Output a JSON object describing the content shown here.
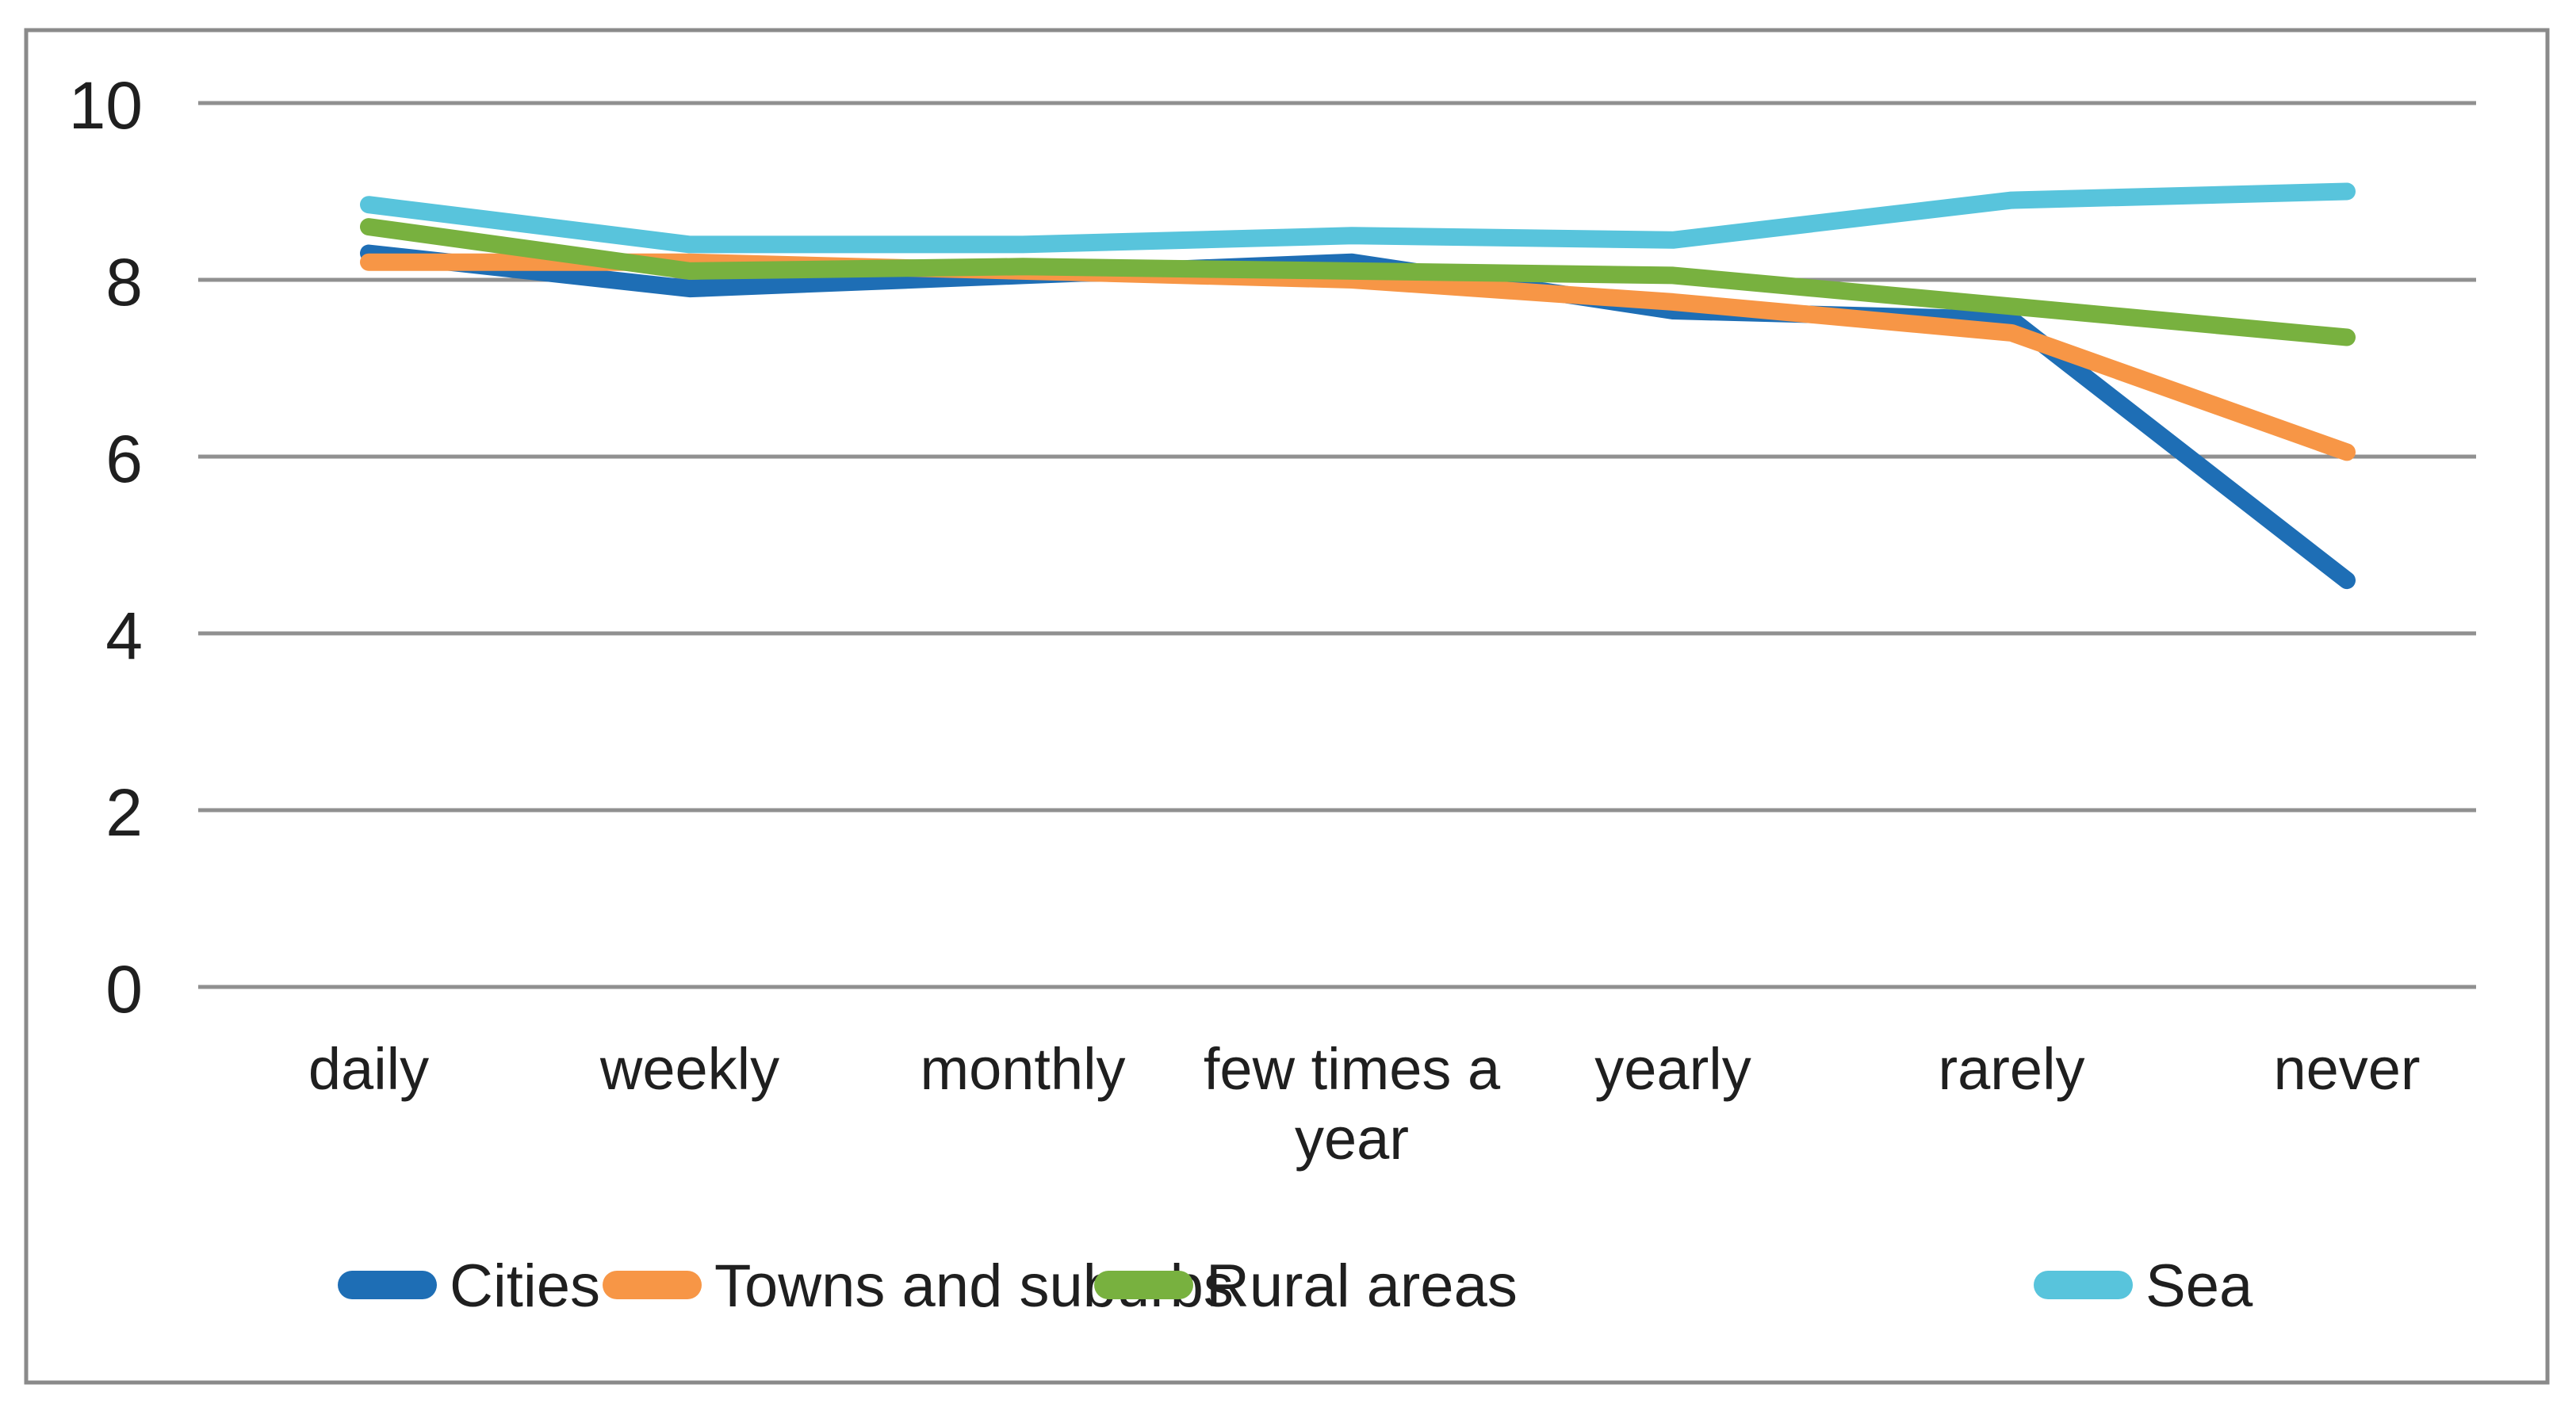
{
  "chart_data": {
    "type": "line",
    "title": "",
    "xlabel": "",
    "ylabel": "",
    "y_axis": {
      "min": 0,
      "max": 10,
      "step": 2,
      "tick_labels": [
        "0",
        "2",
        "4",
        "6",
        "8",
        "10"
      ]
    },
    "categories": [
      {
        "label": "daily",
        "lines": [
          "daily"
        ]
      },
      {
        "label": "weekly",
        "lines": [
          "weekly"
        ]
      },
      {
        "label": "monthly",
        "lines": [
          "monthly"
        ]
      },
      {
        "label": "few times a year",
        "lines": [
          "few times a",
          "year"
        ]
      },
      {
        "label": "yearly",
        "lines": [
          "yearly"
        ]
      },
      {
        "label": "rarely",
        "lines": [
          "rarely"
        ]
      },
      {
        "label": "never",
        "lines": [
          "never"
        ]
      }
    ],
    "series": [
      {
        "name": "Cities",
        "color": "#1E6EB5",
        "values": [
          8.3,
          7.9,
          8.05,
          8.2,
          7.65,
          7.55,
          4.6
        ]
      },
      {
        "name": "Towns and suburbs",
        "color": "#F79646",
        "values": [
          8.2,
          8.2,
          8.1,
          8.0,
          7.75,
          7.4,
          6.05
        ]
      },
      {
        "name": "Rural areas",
        "color": "#78B13F",
        "values": [
          8.6,
          8.1,
          8.15,
          8.1,
          8.05,
          7.7,
          7.35
        ]
      },
      {
        "name": "Sea",
        "color": "#58C4DC",
        "values": [
          8.85,
          8.4,
          8.4,
          8.5,
          8.45,
          8.9,
          9.0
        ]
      }
    ],
    "grid": true,
    "legend_position": "bottom",
    "colors": {
      "gridline": "#909090",
      "border": "#8A8A8A",
      "text": "#1F1F1F",
      "background": "#FFFFFF"
    }
  }
}
